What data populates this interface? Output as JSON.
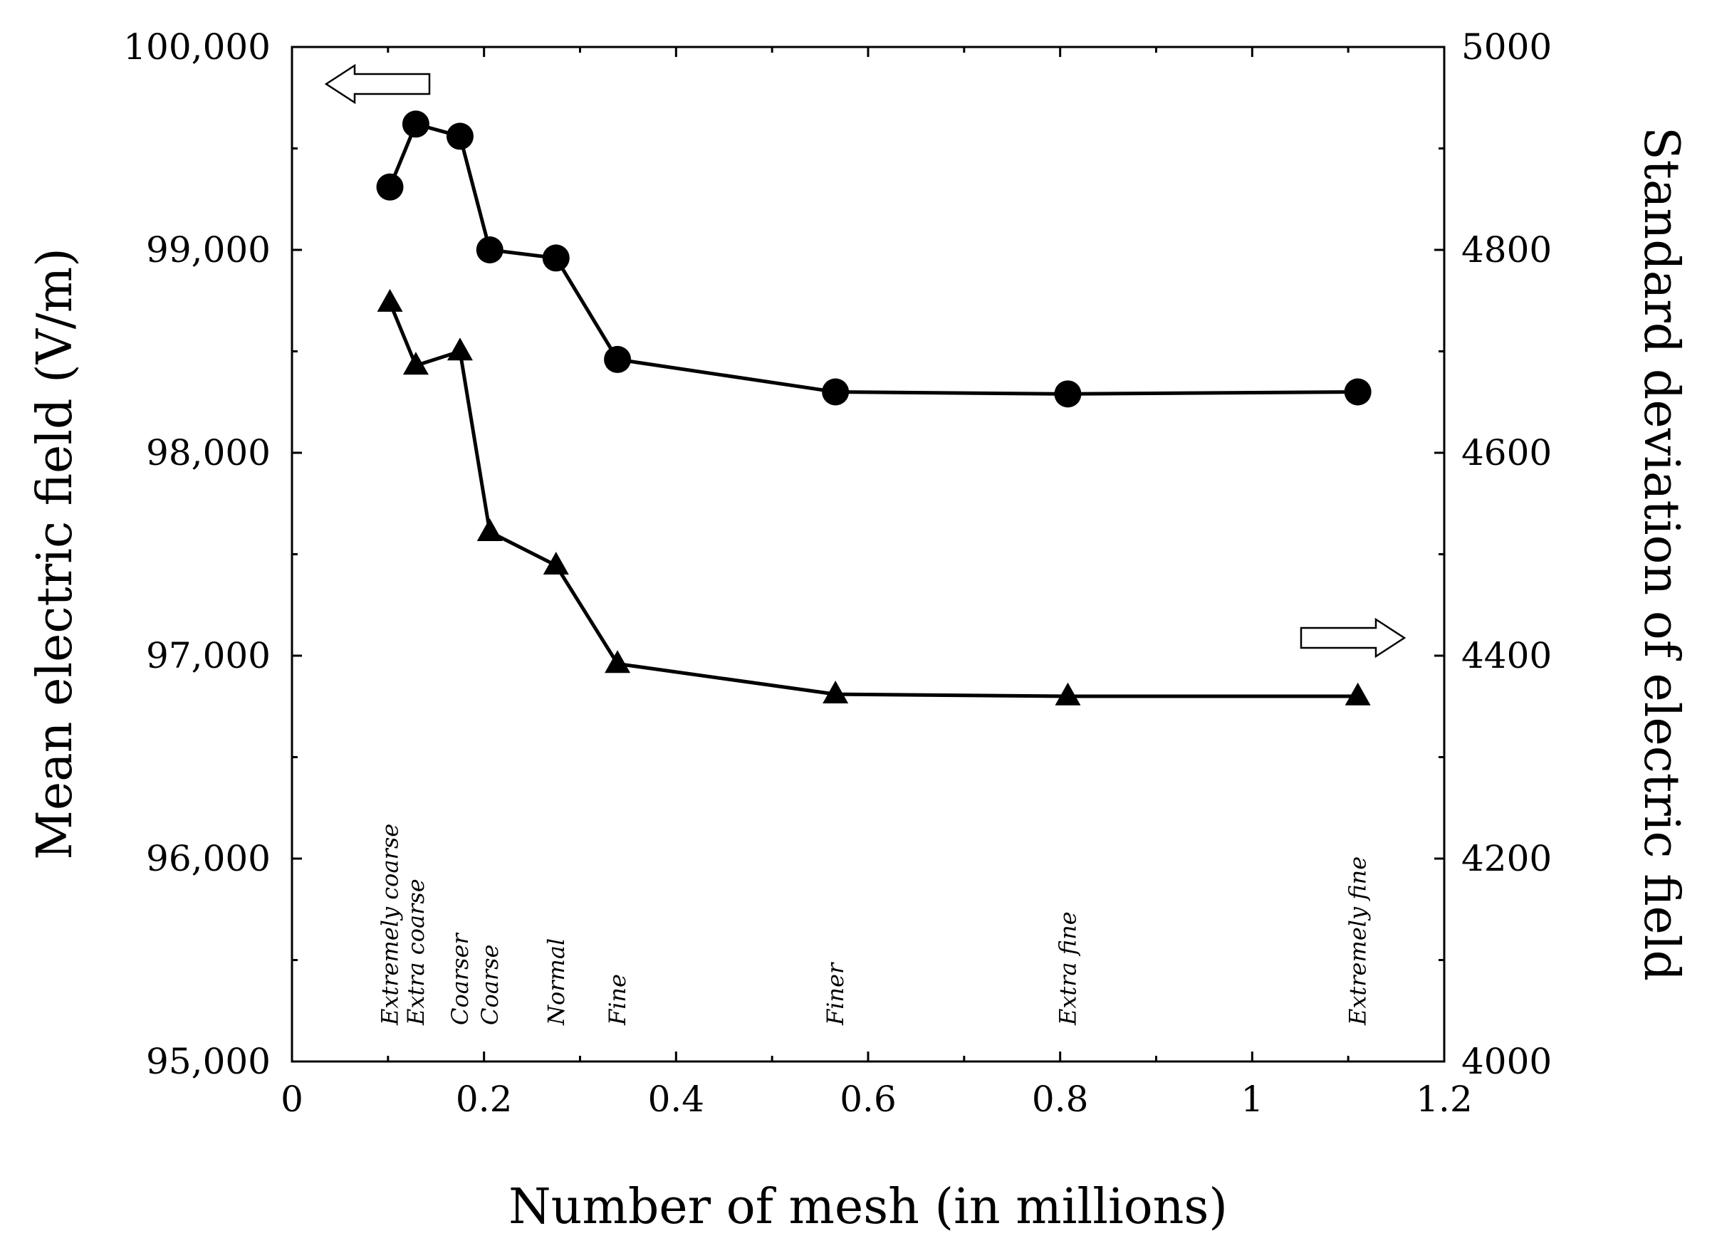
{
  "chart_data": {
    "type": "line",
    "title": "",
    "xlabel": "Number of mesh (in millions)",
    "ylabel_left": "Mean electric field (V/m)",
    "ylabel_right": "Standard deviation of electric field",
    "xlim": [
      0,
      1.2
    ],
    "ylim_left": [
      95000,
      100000
    ],
    "ylim_right": [
      4000,
      5000
    ],
    "x_ticks": [
      "0",
      "0.2",
      "0.4",
      "0.6",
      "0.8",
      "1",
      "1.2"
    ],
    "x_tick_values": [
      0,
      0.2,
      0.4,
      0.6,
      0.8,
      1.0,
      1.2
    ],
    "y_left_ticks": [
      "95,000",
      "96,000",
      "97,000",
      "98,000",
      "99,000",
      "100,000"
    ],
    "y_left_tick_values": [
      95000,
      96000,
      97000,
      98000,
      99000,
      100000
    ],
    "y_right_ticks": [
      "4000",
      "4200",
      "4400",
      "4600",
      "4800",
      "5000"
    ],
    "y_right_tick_values": [
      4000,
      4200,
      4400,
      4600,
      4800,
      5000
    ],
    "x": [
      0.102,
      0.129,
      0.175,
      0.206,
      0.275,
      0.339,
      0.566,
      0.808,
      1.11
    ],
    "mesh_labels": [
      "Extremely coarse",
      "Extra coarse",
      "Coarser",
      "Coarse",
      "Normal",
      "Fine",
      "Finer",
      "Extra fine",
      "Extremely fine"
    ],
    "series": [
      {
        "name": "Mean electric field",
        "axis": "left",
        "marker": "circle",
        "values": [
          99310,
          99620,
          99560,
          99000,
          98960,
          98460,
          98300,
          98290,
          98300
        ]
      },
      {
        "name": "Standard deviation of electric field",
        "axis": "right",
        "marker": "triangle",
        "values": [
          4748,
          4686,
          4700,
          4522,
          4489,
          4392,
          4362,
          4360,
          4360
        ]
      }
    ],
    "annotations": [
      {
        "type": "arrow",
        "direction": "left",
        "refers_to": "left axis"
      },
      {
        "type": "arrow",
        "direction": "right",
        "refers_to": "right axis"
      }
    ]
  }
}
